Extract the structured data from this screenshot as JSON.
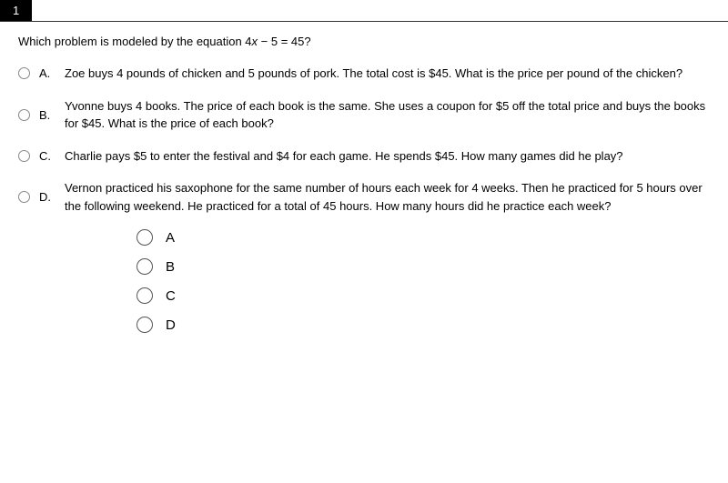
{
  "question": {
    "number": "1",
    "prompt_before": "Which problem is modeled by the equation 4",
    "prompt_var": "x",
    "prompt_after": " − 5 = 45?"
  },
  "options": [
    {
      "letter": "A.",
      "text": "Zoe buys 4 pounds of chicken and 5 pounds of pork. The total cost is $45. What is the price per pound of the chicken?"
    },
    {
      "letter": "B.",
      "text": "Yvonne buys 4 books. The price of each book is the same. She uses a coupon for $5 off the total price and buys the books for $45. What is the price of each book?"
    },
    {
      "letter": "C.",
      "text": "Charlie pays $5 to enter the festival and $4 for each game. He spends $45. How many games did he play?"
    },
    {
      "letter": "D.",
      "text": "Vernon practiced his saxophone for the same number of hours each week for 4 weeks. Then he practiced for 5 hours over the following weekend. He practiced for a total of 45 hours. How many hours did he practice each week?"
    }
  ],
  "answers": [
    {
      "letter": "A"
    },
    {
      "letter": "B"
    },
    {
      "letter": "C"
    },
    {
      "letter": "D"
    }
  ],
  "colors": {
    "header_bg": "#000000",
    "header_fg": "#ffffff",
    "border": "#333333",
    "radio_border": "#888888",
    "text": "#000000",
    "background": "#ffffff"
  }
}
